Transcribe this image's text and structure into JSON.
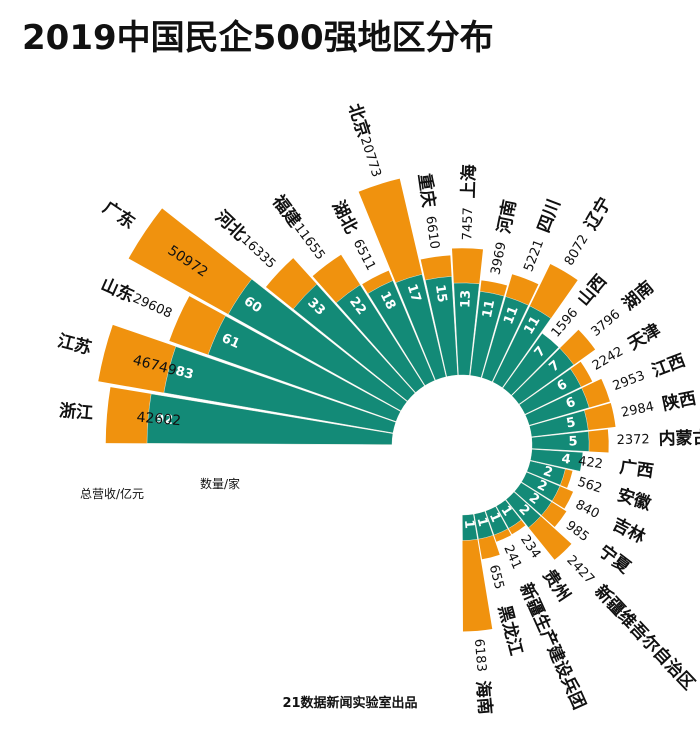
{
  "title": "2019中国民企500强地区分布",
  "credit": "21数据新闻实验室出品",
  "colors": {
    "revenue": "#f0920e",
    "count": "#138a77",
    "text": "#111111",
    "background": "#ffffff"
  },
  "chart_data": {
    "type": "radial-bar",
    "title": "2019中国民企500强地区分布",
    "series": [
      {
        "name": "总营收/亿元",
        "color": "#f0920e"
      },
      {
        "name": "数量/家",
        "color": "#138a77"
      }
    ],
    "legend_revenue": "总营收/亿元",
    "legend_count": "数量/家",
    "provinces": [
      {
        "name": "浙江",
        "revenue": 42602,
        "count": 92
      },
      {
        "name": "江苏",
        "revenue": 46749,
        "count": 83
      },
      {
        "name": "山东",
        "revenue": 29608,
        "count": 61
      },
      {
        "name": "广东",
        "revenue": 50972,
        "count": 60
      },
      {
        "name": "河北",
        "revenue": 16335,
        "count": 33
      },
      {
        "name": "福建",
        "revenue": 11655,
        "count": 22
      },
      {
        "name": "湖北",
        "revenue": 6511,
        "count": 18
      },
      {
        "name": "北京",
        "revenue": 20773,
        "count": 17
      },
      {
        "name": "重庆",
        "revenue": 6610,
        "count": 15
      },
      {
        "name": "上海",
        "revenue": 7457,
        "count": 13
      },
      {
        "name": "河南",
        "revenue": 3969,
        "count": 11
      },
      {
        "name": "四川",
        "revenue": 5221,
        "count": 11
      },
      {
        "name": "辽宁",
        "revenue": 8072,
        "count": 11
      },
      {
        "name": "山西",
        "revenue": 1596,
        "count": 7
      },
      {
        "name": "湖南",
        "revenue": 3796,
        "count": 7
      },
      {
        "name": "天津",
        "revenue": 2242,
        "count": 6
      },
      {
        "name": "江西",
        "revenue": 2953,
        "count": 6
      },
      {
        "name": "陕西",
        "revenue": 2984,
        "count": 5
      },
      {
        "name": "内蒙古",
        "revenue": 2372,
        "count": 5
      },
      {
        "name": "广西",
        "revenue": 422,
        "count": 4
      },
      {
        "name": "安徽",
        "revenue": 562,
        "count": 2
      },
      {
        "name": "吉林",
        "revenue": 840,
        "count": 2
      },
      {
        "name": "宁夏",
        "revenue": 985,
        "count": 2
      },
      {
        "name": "新疆维吾尔自治区",
        "revenue": 2427,
        "count": 2
      },
      {
        "name": "贵州",
        "revenue": 234,
        "count": 1
      },
      {
        "name": "新疆生产建设兵团",
        "revenue": 241,
        "count": 1
      },
      {
        "name": "黑龙江",
        "revenue": 655,
        "count": 1
      },
      {
        "name": "海南",
        "revenue": 6183,
        "count": 1
      }
    ]
  }
}
